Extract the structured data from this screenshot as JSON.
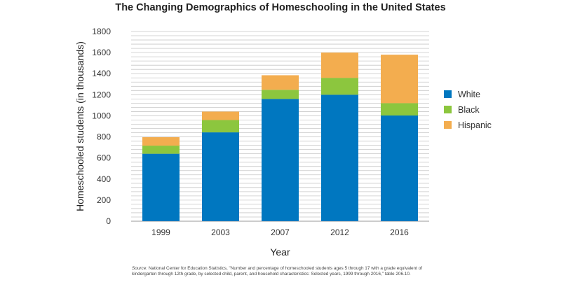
{
  "chart_data": {
    "type": "bar",
    "stacked": true,
    "title": "The Changing Demographics of Homeschooling in the United States",
    "xlabel": "Year",
    "ylabel": "Homeschooled students (in thousands)",
    "categories": [
      "1999",
      "2003",
      "2007",
      "2012",
      "2016"
    ],
    "series": [
      {
        "name": "White",
        "color": "#0077c0",
        "values": [
          640,
          843,
          1160,
          1200,
          1003
        ]
      },
      {
        "name": "Black",
        "color": "#8cc63e",
        "values": [
          77,
          117,
          87,
          160,
          117
        ]
      },
      {
        "name": "Hispanic",
        "color": "#f3ad4f",
        "values": [
          80,
          80,
          138,
          240,
          460
        ]
      }
    ],
    "ylim": [
      0,
      1800
    ],
    "yticks": [
      0,
      200,
      400,
      600,
      800,
      1000,
      1200,
      1400,
      1600,
      1800
    ],
    "grid": true,
    "legend_position": "right"
  },
  "source": {
    "label": "Source:",
    "text": "National Center for Education Statistics, \"Number and percentage of homeschooled students ages 5 through 17 with a grade equivalent of kindergarten through 12th grade, by selected child, parent, and household characteristics: Selected years, 1999 through 2016,\" table 206.10."
  }
}
